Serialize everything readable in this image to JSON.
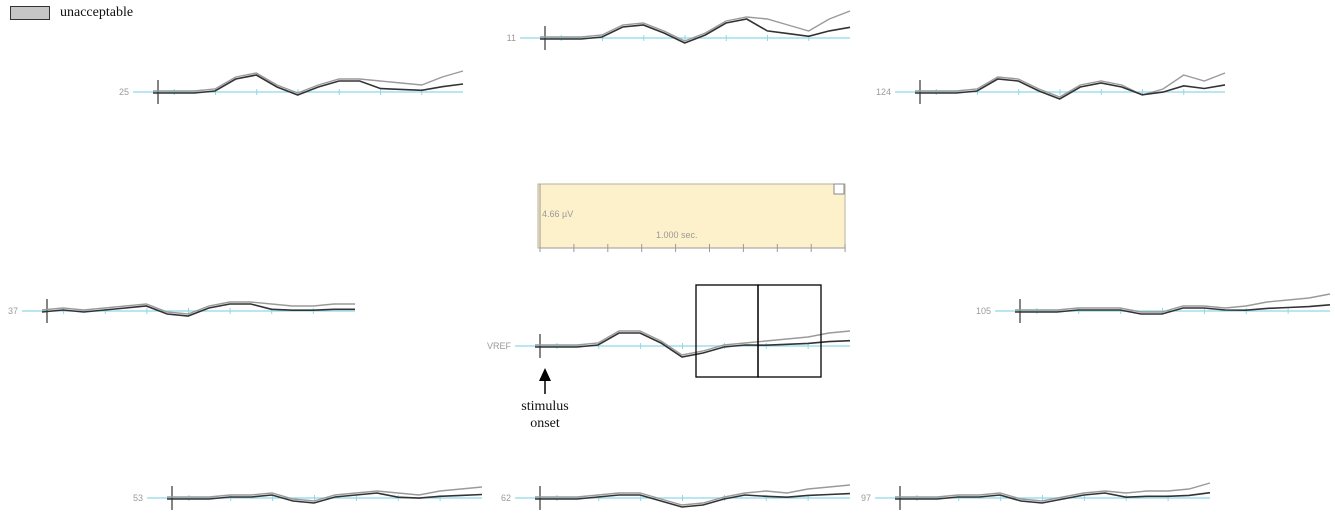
{
  "legend": {
    "label": "unacceptable"
  },
  "annotation": {
    "line1": "stimulus",
    "line2": "onset"
  },
  "scale": {
    "amplitude": "4.66 µV",
    "time": "1.000 sec."
  },
  "colors": {
    "baseline": "#8fd8e8",
    "trace_dark": "#333333",
    "trace_light": "#9a9a9a",
    "scale_fill": "#fdf1cc",
    "legend_swatch": "#c6c6c6"
  },
  "channels": [
    {
      "label": "11",
      "light": [
        0,
        0,
        0,
        -2,
        -12,
        -14,
        -6,
        4,
        -4,
        -16,
        -20,
        -18,
        -12,
        -6,
        -18,
        -26
      ]
    },
    {
      "label": "25",
      "light": [
        0,
        0,
        0,
        -2,
        -14,
        -18,
        -6,
        2,
        -6,
        -12,
        -12,
        -10,
        -8,
        -6,
        -14,
        -20
      ]
    },
    {
      "label": "124",
      "light": [
        0,
        0,
        0,
        -2,
        -14,
        -12,
        -2,
        6,
        -6,
        -10,
        -6,
        4,
        -2,
        -16,
        -10,
        -18
      ]
    },
    {
      "label": "37",
      "light": [
        0,
        -2,
        0,
        -2,
        -4,
        -6,
        2,
        4,
        -4,
        -8,
        -8,
        -6,
        -4,
        -4,
        -6,
        -6
      ]
    },
    {
      "label": "VREF",
      "light": [
        0,
        0,
        0,
        -2,
        -14,
        -14,
        -4,
        10,
        6,
        0,
        -2,
        -4,
        -6,
        -8,
        -12,
        -14
      ]
    },
    {
      "label": "105",
      "light": [
        0,
        0,
        0,
        -2,
        -2,
        -2,
        2,
        2,
        -4,
        -4,
        -2,
        -4,
        -8,
        -10,
        -12,
        -16
      ]
    },
    {
      "label": "53",
      "light": [
        0,
        0,
        0,
        -2,
        -2,
        -4,
        2,
        4,
        -2,
        -4,
        -6,
        -4,
        -2,
        -6,
        -8,
        -10
      ]
    },
    {
      "label": "62",
      "light": [
        0,
        0,
        0,
        -2,
        -4,
        -4,
        2,
        8,
        6,
        0,
        -4,
        -6,
        -4,
        -8,
        -10,
        -12
      ]
    },
    {
      "label": "97",
      "light": [
        0,
        0,
        0,
        -2,
        -2,
        -4,
        2,
        4,
        0,
        -4,
        -6,
        -4,
        -6,
        -6,
        -8,
        -14
      ]
    }
  ]
}
